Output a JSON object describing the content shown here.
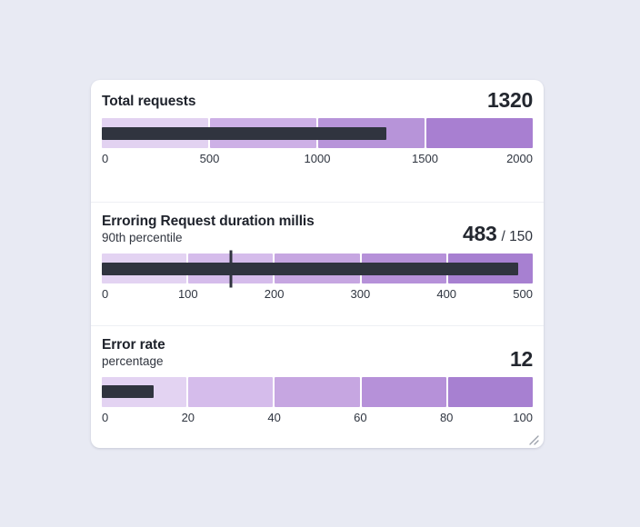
{
  "page": {
    "background_color": "#e8eaf3"
  },
  "card": {
    "background_color": "#ffffff"
  },
  "chart_data": [
    {
      "type": "bullet",
      "title": "Total requests",
      "subtitle": "",
      "value": 1320,
      "value_label": "1320",
      "target": null,
      "target_label": "",
      "axis_min": 0,
      "axis_max": 2000,
      "ticks": [
        0,
        500,
        1000,
        1500,
        2000
      ],
      "bands": [
        {
          "from": 0,
          "to": 500,
          "color": "#e2d2f1"
        },
        {
          "from": 500,
          "to": 1000,
          "color": "#cdb0e6"
        },
        {
          "from": 1000,
          "to": 1500,
          "color": "#b794d9"
        },
        {
          "from": 1500,
          "to": 2000,
          "color": "#a87fd1"
        }
      ],
      "bar_color": "#30343f"
    },
    {
      "type": "bullet",
      "title": "Erroring Request duration millis",
      "subtitle": "90th percentile",
      "value": 483,
      "value_label": "483",
      "target": 150,
      "target_label": "/ 150",
      "axis_min": 0,
      "axis_max": 500,
      "ticks": [
        0,
        100,
        200,
        300,
        400,
        500
      ],
      "bands": [
        {
          "from": 0,
          "to": 100,
          "color": "#e3d3f2"
        },
        {
          "from": 100,
          "to": 200,
          "color": "#d5bceb"
        },
        {
          "from": 200,
          "to": 300,
          "color": "#c6a6e1"
        },
        {
          "from": 300,
          "to": 400,
          "color": "#b691d9"
        },
        {
          "from": 400,
          "to": 500,
          "color": "#a780d1"
        }
      ],
      "bar_color": "#30343f"
    },
    {
      "type": "bullet",
      "title": "Error rate",
      "subtitle": "percentage",
      "value": 12,
      "value_label": "12",
      "target": null,
      "target_label": "",
      "axis_min": 0,
      "axis_max": 100,
      "ticks": [
        0,
        20,
        40,
        60,
        80,
        100
      ],
      "bands": [
        {
          "from": 0,
          "to": 20,
          "color": "#e3d3f2"
        },
        {
          "from": 20,
          "to": 40,
          "color": "#d5bceb"
        },
        {
          "from": 40,
          "to": 60,
          "color": "#c6a6e1"
        },
        {
          "from": 60,
          "to": 80,
          "color": "#b691d9"
        },
        {
          "from": 80,
          "to": 100,
          "color": "#a780d1"
        }
      ],
      "bar_color": "#30343f"
    }
  ]
}
